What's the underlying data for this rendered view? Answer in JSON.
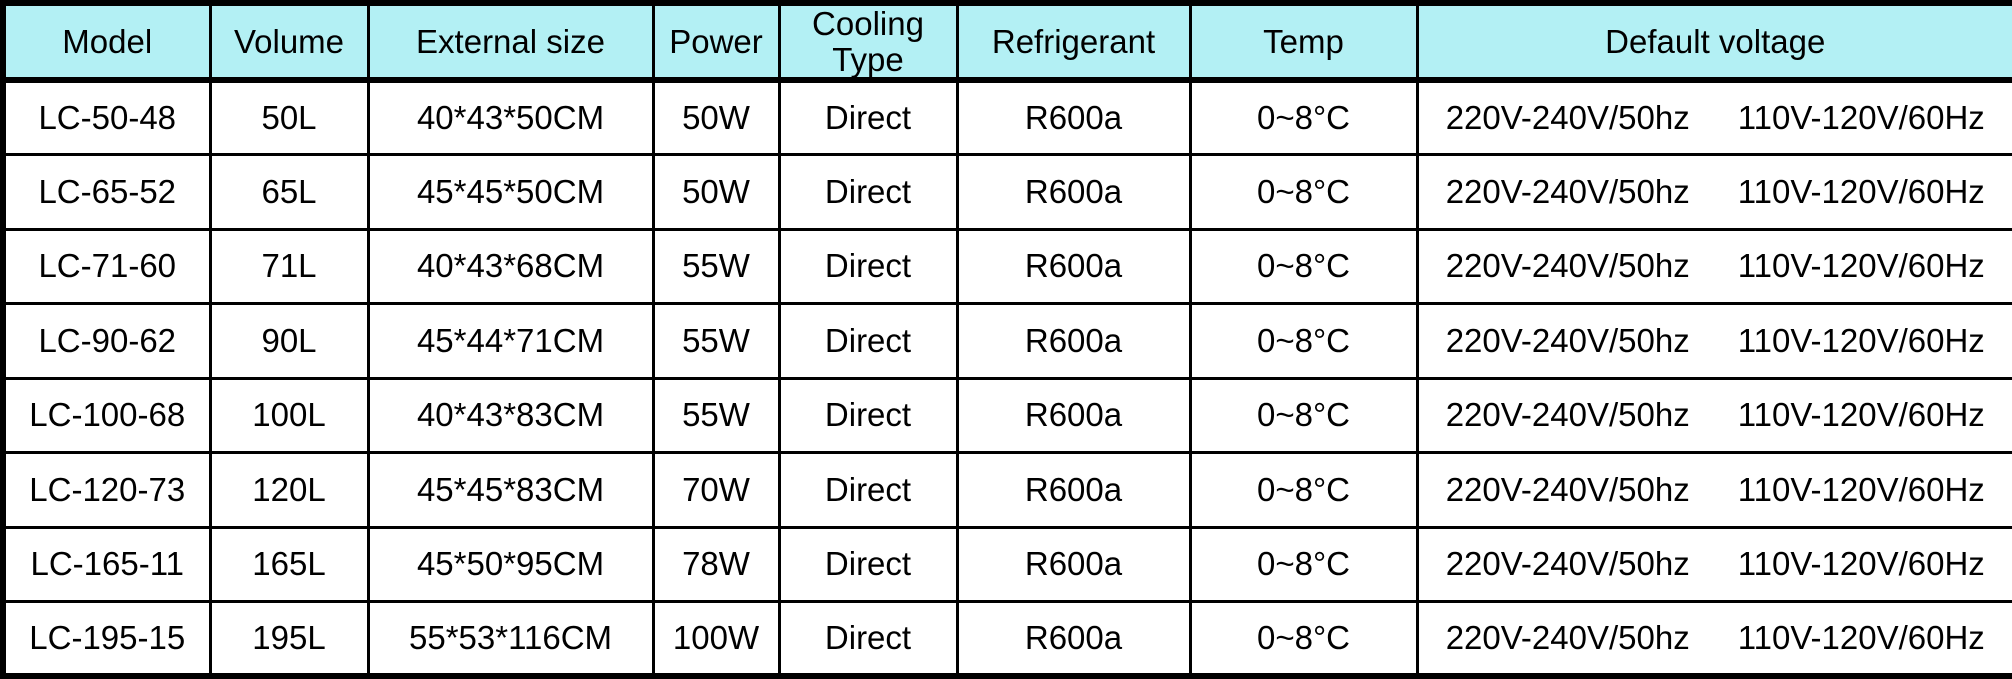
{
  "table": {
    "name": "product-specification-table",
    "header_bg_color": "#b3f0f4",
    "border_color": "#000000",
    "text_color": "#000000",
    "columns": [
      {
        "key": "model",
        "label": "Model"
      },
      {
        "key": "volume",
        "label": "Volume"
      },
      {
        "key": "external_size",
        "label": "External size"
      },
      {
        "key": "power",
        "label": "Power"
      },
      {
        "key": "cooling_type",
        "label": "Cooling Type"
      },
      {
        "key": "refrigerant",
        "label": "Refrigerant"
      },
      {
        "key": "temp",
        "label": "Temp"
      },
      {
        "key": "default_voltage",
        "label": "Default voltage"
      }
    ],
    "rows": [
      {
        "model": "LC-50-48",
        "volume": "50L",
        "external_size": "40*43*50CM",
        "power": "50W",
        "cooling_type": "Direct",
        "refrigerant": "R600a",
        "temp": "0~8°C",
        "default_voltage": [
          "220V-240V/50hz",
          "110V-120V/60Hz"
        ]
      },
      {
        "model": "LC-65-52",
        "volume": "65L",
        "external_size": "45*45*50CM",
        "power": "50W",
        "cooling_type": "Direct",
        "refrigerant": "R600a",
        "temp": "0~8°C",
        "default_voltage": [
          "220V-240V/50hz",
          "110V-120V/60Hz"
        ]
      },
      {
        "model": "LC-71-60",
        "volume": "71L",
        "external_size": "40*43*68CM",
        "power": "55W",
        "cooling_type": "Direct",
        "refrigerant": "R600a",
        "temp": "0~8°C",
        "default_voltage": [
          "220V-240V/50hz",
          "110V-120V/60Hz"
        ]
      },
      {
        "model": "LC-90-62",
        "volume": "90L",
        "external_size": "45*44*71CM",
        "power": "55W",
        "cooling_type": "Direct",
        "refrigerant": "R600a",
        "temp": "0~8°C",
        "default_voltage": [
          "220V-240V/50hz",
          "110V-120V/60Hz"
        ]
      },
      {
        "model": "LC-100-68",
        "volume": "100L",
        "external_size": "40*43*83CM",
        "power": "55W",
        "cooling_type": "Direct",
        "refrigerant": "R600a",
        "temp": "0~8°C",
        "default_voltage": [
          "220V-240V/50hz",
          "110V-120V/60Hz"
        ]
      },
      {
        "model": "LC-120-73",
        "volume": "120L",
        "external_size": "45*45*83CM",
        "power": "70W",
        "cooling_type": "Direct",
        "refrigerant": "R600a",
        "temp": "0~8°C",
        "default_voltage": [
          "220V-240V/50hz",
          "110V-120V/60Hz"
        ]
      },
      {
        "model": "LC-165-11",
        "volume": "165L",
        "external_size": "45*50*95CM",
        "power": "78W",
        "cooling_type": "Direct",
        "refrigerant": "R600a",
        "temp": "0~8°C",
        "default_voltage": [
          "220V-240V/50hz",
          "110V-120V/60Hz"
        ]
      },
      {
        "model": "LC-195-15",
        "volume": "195L",
        "external_size": "55*53*116CM",
        "power": "100W",
        "cooling_type": "Direct",
        "refrigerant": "R600a",
        "temp": "0~8°C",
        "default_voltage": [
          "220V-240V/50hz",
          "110V-120V/60Hz"
        ]
      }
    ]
  }
}
